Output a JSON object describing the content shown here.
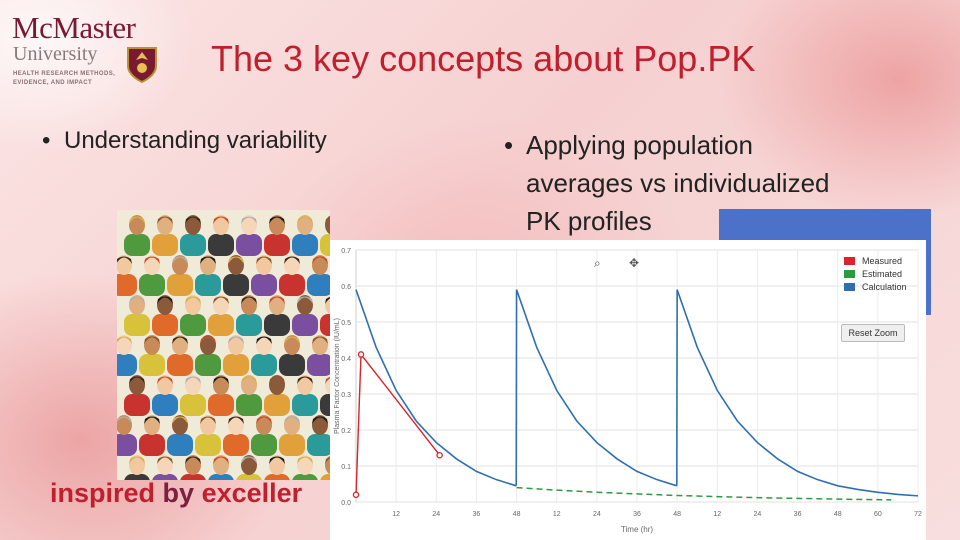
{
  "logo": {
    "line1": "McMaster",
    "line2": "University",
    "tagline": "HEALTH RESEARCH METHODS, EVIDENCE, AND IMPACT"
  },
  "slide": {
    "title": "The 3 key concepts about Pop.PK",
    "bullet_left": "Understanding variability",
    "bullet_right_lines": [
      "Applying population",
      "averages vs individualized",
      "PK profiles"
    ],
    "inspired_word1": "inspired",
    "inspired_word2": "by",
    "inspired_word3": "exceller"
  },
  "colors": {
    "title": "#c0202e",
    "measured": "#d9232d",
    "estimated": "#2e9a40",
    "calculation": "#2f6fb0",
    "blue_box": "#4b72c8"
  },
  "chart_controls": {
    "zoom_icon": "zoom-in-icon",
    "pan_icon": "pan-icon",
    "reset_label": "Reset Zoom"
  },
  "chart_data": {
    "type": "line",
    "ylabel": "Plasma Factor Concentration (IU/mL)",
    "xlabel": "Time (hr)",
    "ylim": [
      0.0,
      0.7
    ],
    "y_ticks": [
      "0.0",
      "0.1",
      "0.2",
      "0.3",
      "0.4",
      "0.5",
      "0.6",
      "0.7"
    ],
    "x_tick_labels": [
      "12",
      "24",
      "36",
      "48",
      "12",
      "24",
      "36",
      "48",
      "12",
      "24",
      "36",
      "48",
      "60",
      "72"
    ],
    "x_tick_hours": [
      12,
      24,
      36,
      48,
      60,
      72,
      84,
      96,
      108,
      120,
      132,
      144,
      156,
      168
    ],
    "xlim": [
      0,
      168
    ],
    "legend": [
      "Measured",
      "Estimated",
      "Calculation"
    ],
    "legend_placement": "top-right",
    "grid": true,
    "series": [
      {
        "name": "Measured",
        "x": [
          0,
          1.5,
          25
        ],
        "y": [
          0.02,
          0.41,
          0.13
        ]
      },
      {
        "name": "Estimated",
        "x": [
          48,
          60,
          72,
          96,
          120,
          144,
          160
        ],
        "y": [
          0.04,
          0.033,
          0.027,
          0.018,
          0.012,
          0.008,
          0.006
        ]
      },
      {
        "name": "Calculation",
        "segments": [
          {
            "x": [
              0,
              6,
              12,
              18,
              24,
              30,
              36,
              42,
              47.9
            ],
            "y": [
              0.59,
              0.43,
              0.31,
              0.225,
              0.165,
              0.12,
              0.085,
              0.062,
              0.045
            ]
          },
          {
            "x": [
              48,
              54,
              60,
              66,
              72,
              78,
              84,
              90,
              95.9
            ],
            "y": [
              0.59,
              0.43,
              0.31,
              0.225,
              0.165,
              0.12,
              0.085,
              0.062,
              0.045
            ]
          },
          {
            "x": [
              96,
              102,
              108,
              114,
              120,
              126,
              132,
              138,
              144,
              150,
              156,
              162,
              168
            ],
            "y": [
              0.59,
              0.43,
              0.31,
              0.225,
              0.165,
              0.12,
              0.085,
              0.062,
              0.045,
              0.035,
              0.027,
              0.021,
              0.017
            ]
          }
        ]
      }
    ]
  }
}
